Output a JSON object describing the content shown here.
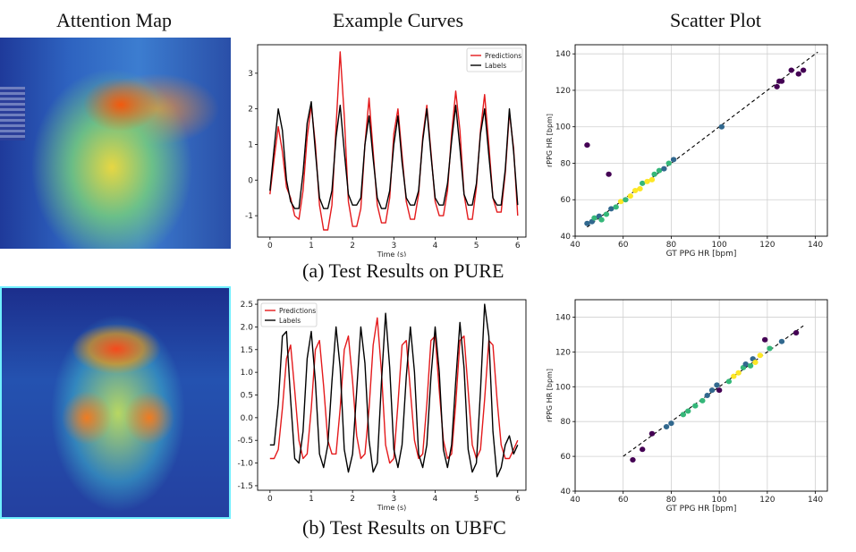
{
  "column_titles": {
    "attention": "Attention Map",
    "curves": "Example Curves",
    "scatter": "Scatter Plot"
  },
  "captions": {
    "pure": "(a) Test Results on PURE",
    "ubfc": "(b) Test Results on UBFC"
  },
  "colors": {
    "prediction": "#e41a1c",
    "label": "#000000",
    "viridis": [
      "#440154",
      "#31688e",
      "#35b779",
      "#fde725"
    ]
  },
  "chart_data": [
    {
      "id": "pure-curves",
      "type": "line",
      "xlabel": "Time (s)",
      "ylabel": "",
      "xlim": [
        -0.3,
        6.2
      ],
      "ylim": [
        -1.6,
        3.8
      ],
      "xticks": [
        0,
        1,
        2,
        3,
        4,
        5,
        6
      ],
      "yticks": [
        -1,
        0,
        1,
        2,
        3
      ],
      "legend": "top-right",
      "grid": false,
      "series": [
        {
          "name": "Predictions",
          "color": "#e41a1c",
          "x": [
            0.0,
            0.1,
            0.2,
            0.3,
            0.4,
            0.5,
            0.6,
            0.7,
            0.8,
            0.9,
            1.0,
            1.1,
            1.2,
            1.3,
            1.4,
            1.5,
            1.6,
            1.7,
            1.8,
            1.9,
            2.0,
            2.1,
            2.2,
            2.3,
            2.4,
            2.5,
            2.6,
            2.7,
            2.8,
            2.9,
            3.0,
            3.1,
            3.2,
            3.3,
            3.4,
            3.5,
            3.6,
            3.7,
            3.8,
            3.9,
            4.0,
            4.1,
            4.2,
            4.3,
            4.4,
            4.5,
            4.6,
            4.7,
            4.8,
            4.9,
            5.0,
            5.1,
            5.2,
            5.3,
            5.4,
            5.5,
            5.6,
            5.7,
            5.8,
            5.9,
            6.0
          ],
          "values": [
            -0.4,
            0.6,
            1.5,
            0.8,
            -0.2,
            -0.5,
            -1.0,
            -1.1,
            -0.3,
            1.2,
            2.1,
            1.0,
            -0.7,
            -1.4,
            -1.4,
            -0.7,
            1.5,
            3.6,
            1.8,
            -0.6,
            -1.3,
            -1.3,
            -0.8,
            1.0,
            2.3,
            0.8,
            -0.7,
            -1.2,
            -1.2,
            -0.5,
            1.3,
            2.0,
            0.7,
            -0.6,
            -1.1,
            -1.1,
            -0.4,
            1.2,
            2.1,
            0.8,
            -0.6,
            -1.0,
            -1.0,
            -0.3,
            1.3,
            2.5,
            1.4,
            -0.4,
            -1.1,
            -1.1,
            -0.2,
            1.4,
            2.4,
            1.0,
            -0.5,
            -0.9,
            -0.9,
            0.2,
            1.9,
            0.9,
            -1.0
          ]
        },
        {
          "name": "Labels",
          "color": "#000000",
          "x": [
            0.0,
            0.1,
            0.2,
            0.3,
            0.4,
            0.5,
            0.6,
            0.7,
            0.8,
            0.9,
            1.0,
            1.1,
            1.2,
            1.3,
            1.4,
            1.5,
            1.6,
            1.7,
            1.8,
            1.9,
            2.0,
            2.1,
            2.2,
            2.3,
            2.4,
            2.5,
            2.6,
            2.7,
            2.8,
            2.9,
            3.0,
            3.1,
            3.2,
            3.3,
            3.4,
            3.5,
            3.6,
            3.7,
            3.8,
            3.9,
            4.0,
            4.1,
            4.2,
            4.3,
            4.4,
            4.5,
            4.6,
            4.7,
            4.8,
            4.9,
            5.0,
            5.1,
            5.2,
            5.3,
            5.4,
            5.5,
            5.6,
            5.7,
            5.8,
            5.9,
            6.0
          ],
          "values": [
            -0.3,
            0.9,
            2.0,
            1.4,
            0.0,
            -0.6,
            -0.8,
            -0.8,
            0.2,
            1.6,
            2.2,
            0.8,
            -0.5,
            -0.8,
            -0.8,
            -0.3,
            1.2,
            2.1,
            0.8,
            -0.4,
            -0.7,
            -0.7,
            -0.5,
            1.0,
            1.8,
            0.6,
            -0.5,
            -0.8,
            -0.8,
            -0.3,
            1.0,
            1.8,
            0.5,
            -0.5,
            -0.7,
            -0.7,
            -0.3,
            1.1,
            2.0,
            0.7,
            -0.5,
            -0.7,
            -0.7,
            -0.1,
            1.1,
            2.1,
            0.9,
            -0.4,
            -0.7,
            -0.7,
            -0.1,
            1.3,
            2.0,
            0.7,
            -0.5,
            -0.7,
            -0.7,
            0.3,
            2.0,
            0.8,
            -0.7
          ]
        }
      ]
    },
    {
      "id": "pure-scatter",
      "type": "scatter",
      "xlabel": "GT PPG HR [bpm]",
      "ylabel": "rPPG HR [bpm]",
      "xlim": [
        40,
        145
      ],
      "ylim": [
        40,
        145
      ],
      "xticks": [
        40,
        60,
        80,
        100,
        120,
        140
      ],
      "yticks": [
        40,
        60,
        80,
        100,
        120,
        140
      ],
      "grid": true,
      "reference_line": [
        [
          45,
          45
        ],
        [
          141,
          141
        ]
      ],
      "points": [
        {
          "x": 45,
          "y": 90,
          "c": 0
        },
        {
          "x": 54,
          "y": 74,
          "c": 0
        },
        {
          "x": 45,
          "y": 47,
          "c": 1
        },
        {
          "x": 47,
          "y": 48,
          "c": 1
        },
        {
          "x": 48,
          "y": 50,
          "c": 2
        },
        {
          "x": 50,
          "y": 51,
          "c": 1
        },
        {
          "x": 51,
          "y": 49,
          "c": 2
        },
        {
          "x": 53,
          "y": 52,
          "c": 2
        },
        {
          "x": 55,
          "y": 55,
          "c": 1
        },
        {
          "x": 57,
          "y": 56,
          "c": 2
        },
        {
          "x": 59,
          "y": 59,
          "c": 3
        },
        {
          "x": 61,
          "y": 60,
          "c": 2
        },
        {
          "x": 63,
          "y": 62,
          "c": 3
        },
        {
          "x": 65,
          "y": 65,
          "c": 3
        },
        {
          "x": 67,
          "y": 66,
          "c": 3
        },
        {
          "x": 68,
          "y": 69,
          "c": 2
        },
        {
          "x": 70,
          "y": 70,
          "c": 3
        },
        {
          "x": 72,
          "y": 71,
          "c": 3
        },
        {
          "x": 73,
          "y": 74,
          "c": 2
        },
        {
          "x": 75,
          "y": 76,
          "c": 2
        },
        {
          "x": 77,
          "y": 77,
          "c": 1
        },
        {
          "x": 79,
          "y": 80,
          "c": 2
        },
        {
          "x": 81,
          "y": 82,
          "c": 1
        },
        {
          "x": 101,
          "y": 100,
          "c": 1
        },
        {
          "x": 124,
          "y": 122,
          "c": 0
        },
        {
          "x": 125,
          "y": 125,
          "c": 0
        },
        {
          "x": 126,
          "y": 125,
          "c": 0
        },
        {
          "x": 130,
          "y": 131,
          "c": 0
        },
        {
          "x": 133,
          "y": 129,
          "c": 0
        },
        {
          "x": 135,
          "y": 131,
          "c": 0
        }
      ]
    },
    {
      "id": "ubfc-curves",
      "type": "line",
      "xlabel": "Time (s)",
      "ylabel": "",
      "xlim": [
        -0.3,
        6.2
      ],
      "ylim": [
        -1.6,
        2.6
      ],
      "xticks": [
        0,
        1,
        2,
        3,
        4,
        5,
        6
      ],
      "yticks": [
        -1.5,
        -1.0,
        -0.5,
        0.0,
        0.5,
        1.0,
        1.5,
        2.0,
        2.5
      ],
      "legend": "top-left",
      "grid": false,
      "series": [
        {
          "name": "Predictions",
          "color": "#e41a1c",
          "x": [
            0.0,
            0.1,
            0.2,
            0.3,
            0.4,
            0.5,
            0.6,
            0.7,
            0.8,
            0.9,
            1.0,
            1.1,
            1.2,
            1.3,
            1.4,
            1.5,
            1.6,
            1.7,
            1.8,
            1.9,
            2.0,
            2.1,
            2.2,
            2.3,
            2.4,
            2.5,
            2.6,
            2.7,
            2.8,
            2.9,
            3.0,
            3.1,
            3.2,
            3.3,
            3.4,
            3.5,
            3.6,
            3.7,
            3.8,
            3.9,
            4.0,
            4.1,
            4.2,
            4.3,
            4.4,
            4.5,
            4.6,
            4.7,
            4.8,
            4.9,
            5.0,
            5.1,
            5.2,
            5.3,
            5.4,
            5.5,
            5.6,
            5.7,
            5.8,
            5.9,
            6.0
          ],
          "values": [
            -0.9,
            -0.9,
            -0.7,
            0.2,
            1.3,
            1.6,
            0.6,
            -0.5,
            -0.9,
            -0.8,
            0.2,
            1.5,
            1.7,
            0.7,
            -0.5,
            -0.8,
            -0.8,
            0.2,
            1.5,
            1.8,
            0.8,
            -0.4,
            -0.9,
            -0.8,
            0.2,
            1.6,
            2.2,
            1.0,
            -0.6,
            -1.0,
            -0.9,
            0.3,
            1.6,
            1.7,
            0.6,
            -0.5,
            -0.9,
            -0.8,
            0.3,
            1.7,
            1.8,
            0.6,
            -0.5,
            -0.9,
            -0.8,
            0.3,
            1.7,
            1.8,
            0.6,
            -0.6,
            -0.9,
            -0.7,
            0.4,
            1.7,
            1.6,
            0.4,
            -0.6,
            -0.9,
            -0.9,
            -0.7,
            -0.5
          ]
        },
        {
          "name": "Labels",
          "color": "#000000",
          "x": [
            0.0,
            0.1,
            0.2,
            0.3,
            0.4,
            0.5,
            0.6,
            0.7,
            0.8,
            0.9,
            1.0,
            1.1,
            1.2,
            1.3,
            1.4,
            1.5,
            1.6,
            1.7,
            1.8,
            1.9,
            2.0,
            2.1,
            2.2,
            2.3,
            2.4,
            2.5,
            2.6,
            2.7,
            2.8,
            2.9,
            3.0,
            3.1,
            3.2,
            3.3,
            3.4,
            3.5,
            3.6,
            3.7,
            3.8,
            3.9,
            4.0,
            4.1,
            4.2,
            4.3,
            4.4,
            4.5,
            4.6,
            4.7,
            4.8,
            4.9,
            5.0,
            5.1,
            5.2,
            5.3,
            5.4,
            5.5,
            5.6,
            5.7,
            5.8,
            5.9,
            6.0
          ],
          "values": [
            -0.6,
            -0.6,
            0.3,
            1.8,
            1.9,
            0.4,
            -0.9,
            -1.0,
            -0.3,
            1.3,
            1.9,
            0.8,
            -0.8,
            -1.1,
            -0.6,
            0.8,
            2.0,
            1.1,
            -0.7,
            -1.2,
            -0.8,
            0.6,
            2.0,
            1.2,
            -0.5,
            -1.2,
            -1.0,
            0.8,
            2.3,
            1.1,
            -0.7,
            -1.1,
            -0.6,
            0.9,
            2.0,
            1.0,
            -0.8,
            -1.1,
            -0.6,
            0.9,
            2.0,
            1.0,
            -0.7,
            -1.1,
            -0.6,
            0.8,
            2.1,
            1.1,
            -0.7,
            -1.2,
            -1.0,
            0.6,
            2.5,
            1.8,
            -0.3,
            -1.3,
            -1.1,
            -0.6,
            -0.4,
            -0.8,
            -0.6
          ]
        }
      ]
    },
    {
      "id": "ubfc-scatter",
      "type": "scatter",
      "xlabel": "GT PPG HR [bpm]",
      "ylabel": "rPPG HR [bpm]",
      "xlim": [
        40,
        145
      ],
      "ylim": [
        40,
        150
      ],
      "xticks": [
        40,
        60,
        80,
        100,
        120,
        140
      ],
      "yticks": [
        40,
        60,
        80,
        100,
        120,
        140
      ],
      "grid": true,
      "reference_line": [
        [
          60,
          60
        ],
        [
          135,
          135
        ]
      ],
      "points": [
        {
          "x": 64,
          "y": 58,
          "c": 0
        },
        {
          "x": 68,
          "y": 64,
          "c": 0
        },
        {
          "x": 72,
          "y": 73,
          "c": 0
        },
        {
          "x": 78,
          "y": 77,
          "c": 1
        },
        {
          "x": 80,
          "y": 79,
          "c": 1
        },
        {
          "x": 85,
          "y": 84,
          "c": 2
        },
        {
          "x": 87,
          "y": 86,
          "c": 2
        },
        {
          "x": 90,
          "y": 89,
          "c": 2
        },
        {
          "x": 93,
          "y": 92,
          "c": 2
        },
        {
          "x": 95,
          "y": 95,
          "c": 1
        },
        {
          "x": 97,
          "y": 98,
          "c": 1
        },
        {
          "x": 99,
          "y": 101,
          "c": 1
        },
        {
          "x": 100,
          "y": 98,
          "c": 0
        },
        {
          "x": 104,
          "y": 103,
          "c": 2
        },
        {
          "x": 106,
          "y": 106,
          "c": 3
        },
        {
          "x": 108,
          "y": 108,
          "c": 3
        },
        {
          "x": 110,
          "y": 111,
          "c": 2
        },
        {
          "x": 111,
          "y": 113,
          "c": 1
        },
        {
          "x": 113,
          "y": 112,
          "c": 2
        },
        {
          "x": 114,
          "y": 116,
          "c": 1
        },
        {
          "x": 115,
          "y": 114,
          "c": 3
        },
        {
          "x": 117,
          "y": 118,
          "c": 3
        },
        {
          "x": 119,
          "y": 127,
          "c": 0
        },
        {
          "x": 121,
          "y": 122,
          "c": 2
        },
        {
          "x": 126,
          "y": 126,
          "c": 1
        },
        {
          "x": 132,
          "y": 131,
          "c": 0
        }
      ]
    }
  ]
}
